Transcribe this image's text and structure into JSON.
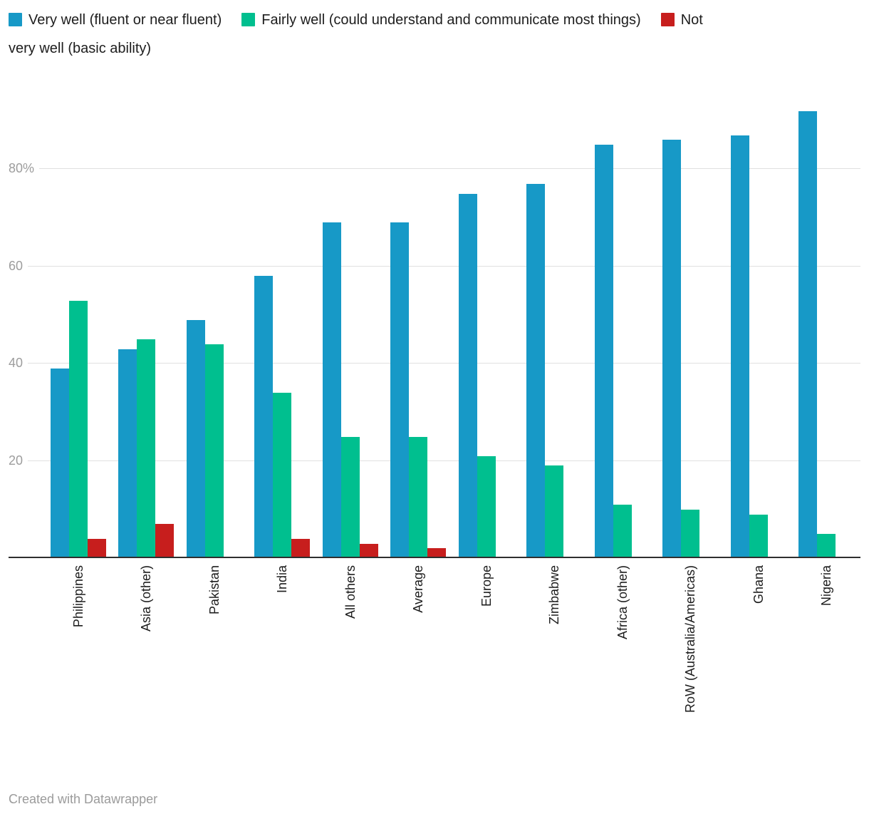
{
  "legend": {
    "items": [
      {
        "label": "Very well (fluent or near fluent)",
        "color": "#1799c7"
      },
      {
        "label": "Fairly well (could understand and communicate most things)",
        "color": "#00bf8f"
      },
      {
        "label": "Not very well (basic ability)",
        "color": "#c71e1d",
        "wrap_after_word": 1
      }
    ]
  },
  "y_axis": {
    "ticks": [
      {
        "value": 20,
        "label": "20"
      },
      {
        "value": 40,
        "label": "40"
      },
      {
        "value": 60,
        "label": "60"
      },
      {
        "value": 80,
        "label": "80%"
      }
    ]
  },
  "chart_data": {
    "type": "bar",
    "title": "",
    "categories": [
      "Philippines",
      "Asia (other)",
      "Pakistan",
      "India",
      "All others",
      "Average",
      "Europe",
      "Zimbabwe",
      "Africa (other)",
      "RoW (Australia/Americas)",
      "Ghana",
      "Nigeria"
    ],
    "series": [
      {
        "name": "Very well (fluent or near fluent)",
        "color": "#1799c7",
        "values": [
          39,
          43,
          49,
          58,
          69,
          69,
          75,
          77,
          85,
          86,
          87,
          92
        ]
      },
      {
        "name": "Fairly well (could understand and communicate most things)",
        "color": "#00bf8f",
        "values": [
          53,
          45,
          44,
          34,
          25,
          25,
          21,
          19,
          11,
          10,
          9,
          5
        ]
      },
      {
        "name": "Not very well (basic ability)",
        "color": "#c71e1d",
        "values": [
          4,
          7,
          0,
          4,
          3,
          2,
          0,
          0,
          0,
          0,
          0,
          0
        ]
      }
    ],
    "xlabel": "",
    "ylabel": "",
    "ylim": [
      0,
      96
    ],
    "grid": true,
    "legend_position": "top",
    "units": "%"
  },
  "footer": {
    "credit": "Created with Datawrapper"
  }
}
